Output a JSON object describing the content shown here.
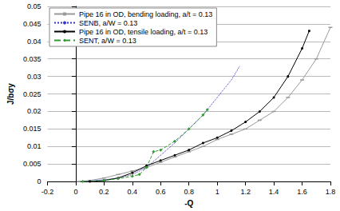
{
  "chart_data": {
    "type": "line",
    "x_label": "-Q",
    "y_label": "J/bσy",
    "xlim": [
      -0.2,
      1.8
    ],
    "xticks": [
      -0.2,
      0,
      0.2,
      0.4,
      0.6,
      0.8,
      1,
      1.2,
      1.4,
      1.6,
      1.8
    ],
    "ylim": [
      0,
      0.05
    ],
    "yticks": [
      0,
      0.005,
      0.01,
      0.015,
      0.02,
      0.025,
      0.03,
      0.035,
      0.04,
      0.045,
      0.05
    ],
    "grid": "y",
    "legend": "upper left",
    "series": [
      {
        "name": "Pipe 16 in OD, bending loading, a/t = 0.13",
        "color": "#999999",
        "marker": "dash",
        "line_style": "solid",
        "x": [
          0.02,
          0.1,
          0.2,
          0.3,
          0.4,
          0.5,
          0.6,
          0.7,
          0.8,
          0.9,
          1.0,
          1.1,
          1.2,
          1.3,
          1.4,
          1.5,
          1.6,
          1.7,
          1.8
        ],
        "values": [
          0,
          0.0003,
          0.001,
          0.002,
          0.003,
          0.004,
          0.0055,
          0.007,
          0.0085,
          0.01,
          0.012,
          0.0135,
          0.015,
          0.0175,
          0.02,
          0.024,
          0.029,
          0.035,
          0.044
        ]
      },
      {
        "name": "SENB, a/W = 0.13",
        "color": "#3333cc",
        "marker": "none",
        "line_style": "dotted",
        "x": [
          0.05,
          0.2,
          0.3,
          0.4,
          0.5,
          0.6,
          0.7,
          0.8,
          0.9,
          1.0,
          1.1,
          1.16
        ],
        "values": [
          0,
          0.0005,
          0.001,
          0.002,
          0.004,
          0.0075,
          0.011,
          0.015,
          0.019,
          0.024,
          0.029,
          0.033
        ]
      },
      {
        "name": "Pipe 16 in OD, tensile loading, a/t = 0.13",
        "color": "#000000",
        "marker": "circle",
        "line_style": "solid",
        "x": [
          0.1,
          0.2,
          0.3,
          0.4,
          0.5,
          0.6,
          0.7,
          0.8,
          0.9,
          1.0,
          1.1,
          1.2,
          1.3,
          1.4,
          1.5,
          1.6,
          1.65
        ],
        "values": [
          0,
          0.0003,
          0.001,
          0.0025,
          0.0045,
          0.006,
          0.0075,
          0.009,
          0.011,
          0.0125,
          0.0145,
          0.017,
          0.02,
          0.024,
          0.03,
          0.038,
          0.043
        ]
      },
      {
        "name": "SENT, a/W = 0.13",
        "color": "#339933",
        "marker": "diamond",
        "line_style": "dashed",
        "x": [
          0.05,
          0.2,
          0.3,
          0.4,
          0.45,
          0.5,
          0.55,
          0.6,
          0.7,
          0.8,
          0.9,
          0.93
        ],
        "values": [
          0,
          0.0003,
          0.0008,
          0.0015,
          0.002,
          0.004,
          0.0085,
          0.009,
          0.0115,
          0.015,
          0.019,
          0.0205
        ]
      }
    ]
  }
}
